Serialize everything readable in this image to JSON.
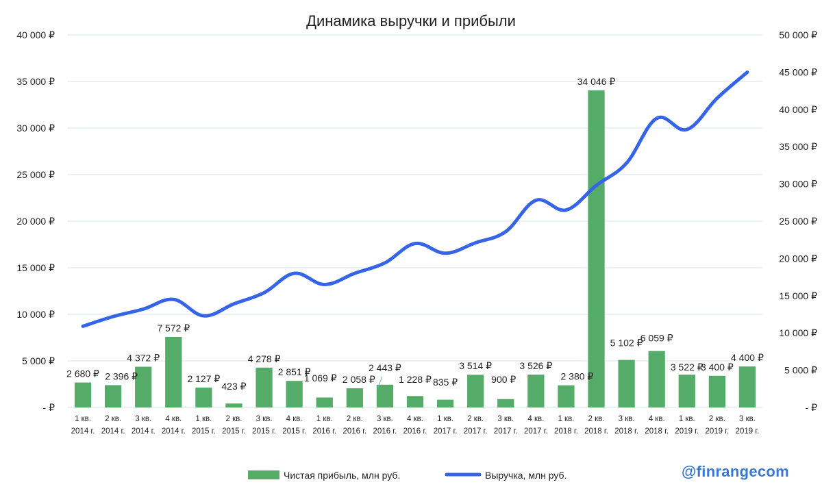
{
  "chart_data": {
    "type": "bar+line",
    "title": "Динамика выручки и прибыли",
    "categories": [
      [
        "1 кв.",
        "2014 г."
      ],
      [
        "2 кв.",
        "2014 г."
      ],
      [
        "3 кв.",
        "2014 г."
      ],
      [
        "4 кв.",
        "2014 г."
      ],
      [
        "1 кв.",
        "2015 г."
      ],
      [
        "2 кв.",
        "2015 г."
      ],
      [
        "3 кв.",
        "2015 г."
      ],
      [
        "4 кв.",
        "2015 г."
      ],
      [
        "1 кв.",
        "2016 г."
      ],
      [
        "2 кв.",
        "2016 г."
      ],
      [
        "3 кв.",
        "2016 г."
      ],
      [
        "4 кв.",
        "2016 г."
      ],
      [
        "1 кв.",
        "2017 г."
      ],
      [
        "2 кв.",
        "2017 г."
      ],
      [
        "3 кв.",
        "2017 г."
      ],
      [
        "4 кв.",
        "2017 г."
      ],
      [
        "1 кв.",
        "2018 г."
      ],
      [
        "2 кв.",
        "2018 г."
      ],
      [
        "3 кв.",
        "2018 г."
      ],
      [
        "4 кв.",
        "2018 г."
      ],
      [
        "1 кв.",
        "2019 г."
      ],
      [
        "2 кв.",
        "2019 г."
      ],
      [
        "3 кв.",
        "2019 г."
      ]
    ],
    "series": [
      {
        "name": "Чистая прибыль, млн руб.",
        "kind": "bar",
        "axis": "left",
        "color": "#55ab68",
        "values": [
          2680,
          2396,
          4372,
          7572,
          2127,
          423,
          4278,
          2851,
          1069,
          2058,
          2443,
          1228,
          835,
          3514,
          900,
          3526,
          2380,
          34046,
          5102,
          6059,
          3522,
          3400,
          4400
        ],
        "labels": [
          "2 680 ₽",
          "2 396 ₽",
          "4 372 ₽",
          "7 572 ₽",
          "2 127 ₽",
          "423 ₽",
          "4 278 ₽",
          "2 851 ₽",
          "1 069 ₽",
          "2 058 ₽",
          "2 443 ₽",
          "1 228 ₽",
          "835 ₽",
          "3 514 ₽",
          "900 ₽",
          "3 526 ₽",
          "2 380 ₽",
          "34 046 ₽",
          "5 102 ₽",
          "6 059 ₽",
          "3 522 ₽",
          "3 400 ₽",
          "4 400 ₽"
        ]
      },
      {
        "name": "Выручка, млн руб.",
        "kind": "line",
        "axis": "right",
        "color": "#3565e6",
        "values": [
          10900,
          12200,
          13200,
          14500,
          12300,
          13900,
          15400,
          18000,
          16500,
          18000,
          19400,
          22000,
          20700,
          22100,
          23600,
          27800,
          26500,
          29800,
          32800,
          38800,
          37300,
          41500,
          45000
        ]
      }
    ],
    "y_left": {
      "min": 0,
      "max": 40000,
      "ticks": [
        0,
        5000,
        10000,
        15000,
        20000,
        25000,
        30000,
        35000,
        40000
      ],
      "tick_labels": [
        "-   ₽",
        "5 000 ₽",
        "10 000 ₽",
        "15 000 ₽",
        "20 000 ₽",
        "25 000 ₽",
        "30 000 ₽",
        "35 000 ₽",
        "40 000 ₽"
      ]
    },
    "y_right": {
      "min": 0,
      "max": 50000,
      "ticks": [
        0,
        5000,
        10000,
        15000,
        20000,
        25000,
        30000,
        35000,
        40000,
        45000,
        50000
      ],
      "tick_labels": [
        "-   ₽",
        "5 000 ₽",
        "10 000 ₽",
        "15 000 ₽",
        "20 000 ₽",
        "25 000 ₽",
        "30 000 ₽",
        "35 000 ₽",
        "40 000 ₽",
        "45 000 ₽",
        "50 000 ₽"
      ]
    },
    "grid": true,
    "legend_position": "bottom-center"
  },
  "watermark": "@finrangecom",
  "colors": {
    "bar": "#55ab68",
    "line": "#3565e6",
    "grid": "#d6e4f0",
    "watermark": "#3a78d6"
  }
}
